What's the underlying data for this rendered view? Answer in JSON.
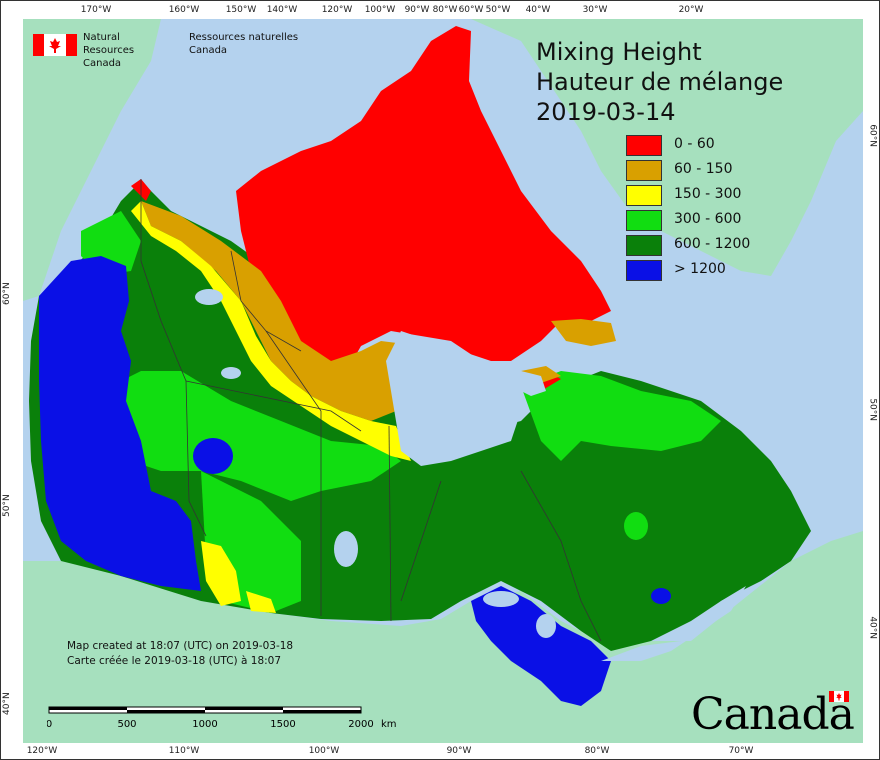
{
  "header": {
    "agency_en_line1": "Natural Resources",
    "agency_en_line2": "Canada",
    "agency_fr_line1": "Ressources naturelles",
    "agency_fr_line2": "Canada"
  },
  "title": {
    "line1": "Mixing Height",
    "line2": "Hauteur de mélange",
    "date": "2019-03-14"
  },
  "legend": {
    "items": [
      {
        "label": "0 - 60",
        "color": "#ff0000"
      },
      {
        "label": "60 - 150",
        "color": "#d9a000"
      },
      {
        "label": "150 - 300",
        "color": "#ffff00"
      },
      {
        "label": "300 - 600",
        "color": "#11dd11"
      },
      {
        "label": "600 - 1200",
        "color": "#0a800a"
      },
      {
        "label": "> 1200",
        "color": "#0a10e6"
      }
    ]
  },
  "colors": {
    "ocean": "#b4d2ee",
    "foreign_land": "#a6e0be",
    "water_bodies": "#b4d2ee"
  },
  "graticule": {
    "top_lon": [
      "170°W",
      "160°W",
      "150°W",
      "140°W",
      "120°W",
      "100°W",
      "90°W",
      "80°W",
      "60°W",
      "50°W",
      "40°W",
      "30°W",
      "20°W"
    ],
    "bottom_lon": [
      "120°W",
      "110°W",
      "100°W",
      "90°W",
      "80°W",
      "70°W"
    ],
    "left_lat": [
      "60°N",
      "50°N",
      "40°N"
    ],
    "right_lat": [
      "60°N",
      "50°N",
      "40°N"
    ]
  },
  "credit": {
    "line_en": "Map created at 18:07 (UTC) on 2019-03-18",
    "line_fr": "Carte créée le 2019-03-18 (UTC) à 18:07"
  },
  "scale": {
    "labels": [
      "0",
      "500",
      "1000",
      "1500",
      "2000"
    ],
    "unit": "km"
  },
  "wordmark": {
    "text": "Canada"
  }
}
